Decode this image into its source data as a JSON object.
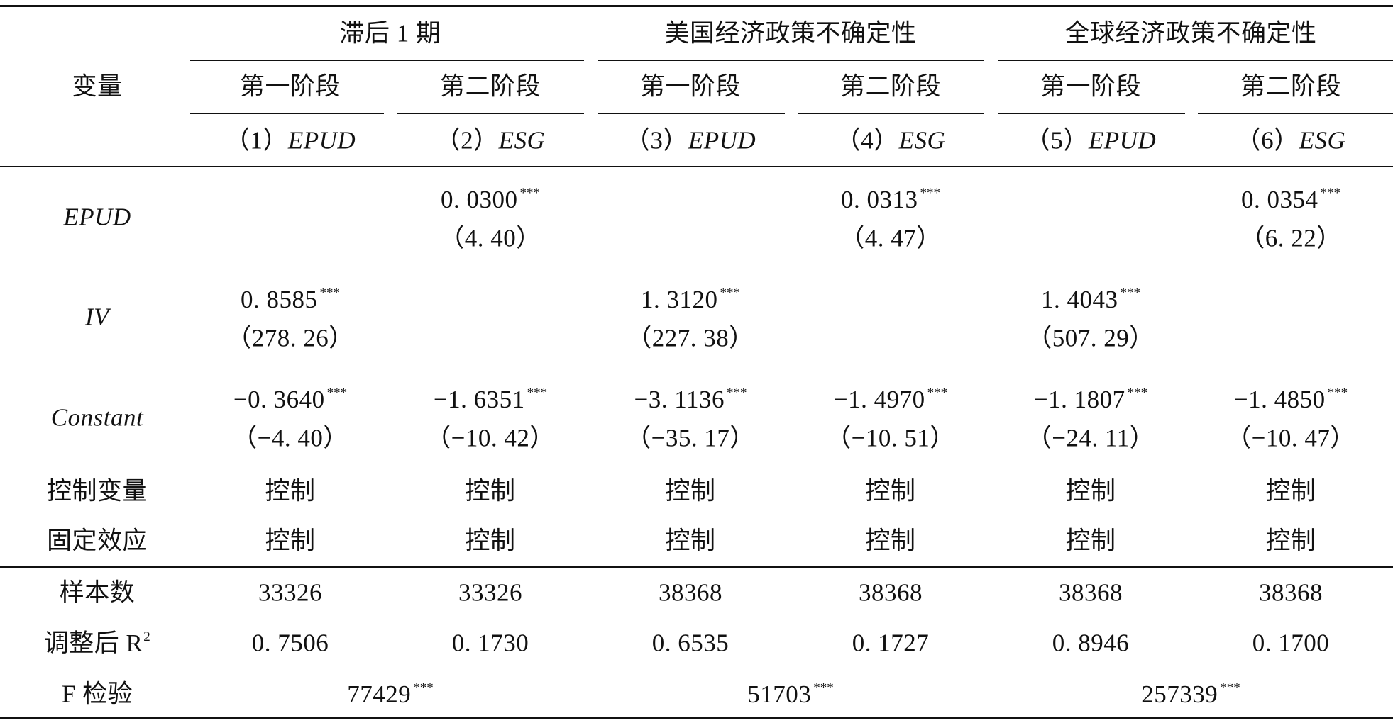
{
  "table": {
    "header": {
      "variable_label": "变量",
      "groups": [
        {
          "title": "滞后 1 期",
          "stage1": "第一阶段",
          "stage2": "第二阶段",
          "col1_num": "（1）",
          "col1_var": "EPUD",
          "col2_num": "（2）",
          "col2_var": "ESG"
        },
        {
          "title": "美国经济政策不确定性",
          "stage1": "第一阶段",
          "stage2": "第二阶段",
          "col1_num": "（3）",
          "col1_var": "EPUD",
          "col2_num": "（4）",
          "col2_var": "ESG"
        },
        {
          "title": "全球经济政策不确定性",
          "stage1": "第一阶段",
          "stage2": "第二阶段",
          "col1_num": "（5）",
          "col1_var": "EPUD",
          "col2_num": "（6）",
          "col2_var": "ESG"
        }
      ]
    },
    "rows": {
      "epud": {
        "label": "EPUD",
        "c2": {
          "coef": "0. 0300",
          "sig": "***",
          "t": "（4. 40）"
        },
        "c4": {
          "coef": "0. 0313",
          "sig": "***",
          "t": "（4. 47）"
        },
        "c6": {
          "coef": "0. 0354",
          "sig": "***",
          "t": "（6. 22）"
        }
      },
      "iv": {
        "label": "IV",
        "c1": {
          "coef": "0. 8585",
          "sig": "***",
          "t": "（278. 26）"
        },
        "c3": {
          "coef": "1. 3120",
          "sig": "***",
          "t": "（227. 38）"
        },
        "c5": {
          "coef": "1. 4043",
          "sig": "***",
          "t": "（507. 29）"
        }
      },
      "constant": {
        "label": "Constant",
        "c1": {
          "coef": "−0. 3640",
          "sig": "***",
          "t": "（−4. 40）"
        },
        "c2": {
          "coef": "−1. 6351",
          "sig": "***",
          "t": "（−10. 42）"
        },
        "c3": {
          "coef": "−3. 1136",
          "sig": "***",
          "t": "（−35. 17）"
        },
        "c4": {
          "coef": "−1. 4970",
          "sig": "***",
          "t": "（−10. 51）"
        },
        "c5": {
          "coef": "−1. 1807",
          "sig": "***",
          "t": "（−24. 11）"
        },
        "c6": {
          "coef": "−1. 4850",
          "sig": "***",
          "t": "（−10. 47）"
        }
      },
      "controls": {
        "label": "控制变量",
        "values": [
          "控制",
          "控制",
          "控制",
          "控制",
          "控制",
          "控制"
        ]
      },
      "fixed_effects": {
        "label": "固定效应",
        "values": [
          "控制",
          "控制",
          "控制",
          "控制",
          "控制",
          "控制"
        ]
      },
      "n_obs": {
        "label": "样本数",
        "values": [
          "33326",
          "33326",
          "38368",
          "38368",
          "38368",
          "38368"
        ]
      },
      "adj_r2": {
        "label": "调整后 R",
        "sup": "2",
        "values": [
          "0. 7506",
          "0. 1730",
          "0. 6535",
          "0. 1727",
          "0. 8946",
          "0. 1700"
        ]
      },
      "f_test": {
        "label": "F 检验",
        "values": [
          {
            "value": "77429",
            "sig": "***"
          },
          {
            "value": "51703",
            "sig": "***"
          },
          {
            "value": "257339",
            "sig": "***"
          }
        ]
      }
    }
  }
}
